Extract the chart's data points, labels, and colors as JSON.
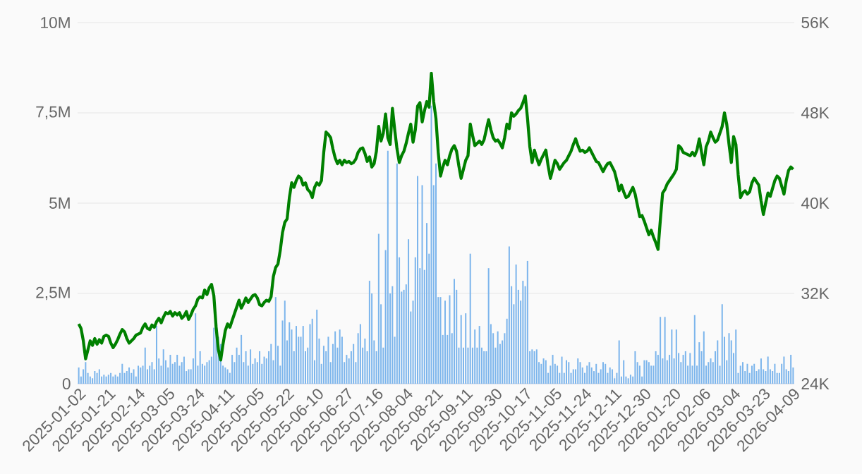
{
  "chart_data": {
    "type": "bar",
    "categories": [
      "2025-01-02",
      null,
      null,
      null,
      null,
      null,
      null,
      null,
      null,
      null,
      null,
      null,
      null,
      "2025-01-21",
      null,
      null,
      null,
      null,
      null,
      null,
      null,
      null,
      null,
      null,
      null,
      null,
      "2025-02-14",
      null,
      null,
      null,
      null,
      null,
      null,
      null,
      null,
      null,
      null,
      null,
      null,
      "2025-03-05",
      null,
      null,
      null,
      null,
      null,
      null,
      null,
      null,
      null,
      null,
      null,
      null,
      "2025-03-24",
      null,
      null,
      null,
      null,
      null,
      null,
      null,
      null,
      null,
      null,
      null,
      null,
      "2025-04-11",
      null,
      null,
      null,
      null,
      null,
      null,
      null,
      null,
      null,
      null,
      null,
      null,
      "2025-05-05",
      null,
      null,
      null,
      null,
      null,
      null,
      null,
      null,
      null,
      null,
      null,
      null,
      "2025-05-22",
      null,
      null,
      null,
      null,
      null,
      null,
      null,
      null,
      null,
      null,
      null,
      null,
      "2025-06-10",
      null,
      null,
      null,
      null,
      null,
      null,
      null,
      null,
      null,
      null,
      null,
      null,
      "2025-06-27",
      null,
      null,
      null,
      null,
      null,
      null,
      null,
      null,
      null,
      null,
      null,
      null,
      "2025-07-16",
      null,
      null,
      null,
      null,
      null,
      null,
      null,
      null,
      null,
      null,
      null,
      null,
      "2025-08-04",
      null,
      null,
      null,
      null,
      null,
      null,
      null,
      null,
      null,
      null,
      null,
      null,
      "2025-08-21",
      null,
      null,
      null,
      null,
      null,
      null,
      null,
      null,
      null,
      null,
      null,
      null,
      "2025-09-11",
      null,
      null,
      null,
      null,
      null,
      null,
      null,
      null,
      null,
      null,
      null,
      null,
      "2025-09-30",
      null,
      null,
      null,
      null,
      null,
      null,
      null,
      null,
      null,
      null,
      null,
      null,
      "2025-10-17",
      null,
      null,
      null,
      null,
      null,
      null,
      null,
      null,
      null,
      null,
      null,
      null,
      "2025-11-05",
      null,
      null,
      null,
      null,
      null,
      null,
      null,
      null,
      null,
      null,
      null,
      null,
      "2025-11-24",
      null,
      null,
      null,
      null,
      null,
      null,
      null,
      null,
      null,
      null,
      null,
      null,
      "2025-12-11",
      null,
      null,
      null,
      null,
      null,
      null,
      null,
      null,
      null,
      null,
      null,
      null,
      "2025-12-30",
      null,
      null,
      null,
      null,
      null,
      null,
      null,
      null,
      null,
      null,
      null,
      null,
      "2026-01-20",
      null,
      null,
      null,
      null,
      null,
      null,
      null,
      null,
      null,
      null,
      null,
      null,
      "2026-02-06",
      null,
      null,
      null,
      null,
      null,
      null,
      null,
      null,
      null,
      null,
      null,
      null,
      "2026-03-04",
      null,
      null,
      null,
      null,
      null,
      null,
      null,
      null,
      null,
      null,
      null,
      null,
      "2026-03-23",
      null,
      null,
      null,
      null,
      null,
      null,
      null,
      null,
      null,
      null,
      null,
      null,
      "2026-04-09"
    ],
    "series": [
      {
        "color": "#7cb5ec",
        "axis": "y",
        "values": [
          0.45,
          0.2,
          0.4,
          0.6,
          0.3,
          0.2,
          0.15,
          0.35,
          0.3,
          0.4,
          0.2,
          0.25,
          0.2,
          0.25,
          0.3,
          0.2,
          0.25,
          0.2,
          0.3,
          0.55,
          0.3,
          0.35,
          0.45,
          0.3,
          0.4,
          0.2,
          0.5,
          0.45,
          0.5,
          1.0,
          0.4,
          0.5,
          0.6,
          0.4,
          1.6,
          0.7,
          0.5,
          0.95,
          0.65,
          0.45,
          0.8,
          0.55,
          0.6,
          0.8,
          0.5,
          0.6,
          0.75,
          0.35,
          0.4,
          0.4,
          0.7,
          1.95,
          0.5,
          0.9,
          0.55,
          0.5,
          0.6,
          0.65,
          0.75,
          1.55,
          1.45,
          1.3,
          1.1,
          0.5,
          0.45,
          0.4,
          0.3,
          0.8,
          0.6,
          1.0,
          0.8,
          1.35,
          0.6,
          0.9,
          0.5,
          0.95,
          0.55,
          0.7,
          0.6,
          0.9,
          0.55,
          0.75,
          0.7,
          0.9,
          1.1,
          0.65,
          2.4,
          1.05,
          0.5,
          1.75,
          2.3,
          1.2,
          1.7,
          1.5,
          0.9,
          1.6,
          1.3,
          1.3,
          1.6,
          0.9,
          1.0,
          1.65,
          1.8,
          0.65,
          2.05,
          1.25,
          0.55,
          1.05,
          0.9,
          1.3,
          0.6,
          1.1,
          1.45,
          1.0,
          1.5,
          1.3,
          0.6,
          0.8,
          0.7,
          0.9,
          1.1,
          0.6,
          1.4,
          1.65,
          1.0,
          1.25,
          0.9,
          2.85,
          2.5,
          1.2,
          0.9,
          4.15,
          2.2,
          1.0,
          3.7,
          6.45,
          2.5,
          2.7,
          1.3,
          6.1,
          3.5,
          2.55,
          2.6,
          2.75,
          4.0,
          2.0,
          2.3,
          3.5,
          5.75,
          3.2,
          5.5,
          3.15,
          4.45,
          3.6,
          7.7,
          5.5,
          6.1,
          2.4,
          2.4,
          1.35,
          2.3,
          1.35,
          2.45,
          1.4,
          2.9,
          2.6,
          1.0,
          1.9,
          1.0,
          1.95,
          1.0,
          3.6,
          1.0,
          1.5,
          1.0,
          1.6,
          1.0,
          0.9,
          0.9,
          3.2,
          1.65,
          1.4,
          1.0,
          1.45,
          1.1,
          1.2,
          1.4,
          1.8,
          3.8,
          2.7,
          2.2,
          3.3,
          2.6,
          2.3,
          2.85,
          2.7,
          3.4,
          0.9,
          0.95,
          0.9,
          0.95,
          0.6,
          0.55,
          0.7,
          0.65,
          0.3,
          0.5,
          0.8,
          0.55,
          0.5,
          0.3,
          0.75,
          0.3,
          0.65,
          0.6,
          0.3,
          0.4,
          0.4,
          0.7,
          0.6,
          0.45,
          0.3,
          0.5,
          0.6,
          0.45,
          0.35,
          0.55,
          0.3,
          0.4,
          0.6,
          0.55,
          0.3,
          0.45,
          0.4,
          0.15,
          0.3,
          1.2,
          0.2,
          0.65,
          0.2,
          0.15,
          0.25,
          0.2,
          0.9,
          0.6,
          0.5,
          0.2,
          0.65,
          0.65,
          0.6,
          0.5,
          0.5,
          0.9,
          0.8,
          1.85,
          0.7,
          1.85,
          0.65,
          0.8,
          1.5,
          0.7,
          1.5,
          0.85,
          0.6,
          0.8,
          0.9,
          0.5,
          0.85,
          0.5,
          1.9,
          0.5,
          1.15,
          0.9,
          1.45,
          0.5,
          0.6,
          0.7,
          0.6,
          0.9,
          1.2,
          0.5,
          2.2,
          1.3,
          0.65,
          1.4,
          1.2,
          0.85,
          1.5,
          0.3,
          0.5,
          0.6,
          0.35,
          0.55,
          0.3,
          0.5,
          0.55,
          0.35,
          0.4,
          0.7,
          0.4,
          0.35,
          0.75,
          0.4,
          0.35,
          0.55,
          0.3,
          0.3,
          0.55,
          0.75,
          0.4,
          0.35,
          0.8,
          0.45
        ]
      },
      {
        "type": "line",
        "color": "#008000",
        "axis": "y2",
        "values": [
          29.3,
          28.9,
          27.8,
          26.2,
          27.0,
          27.8,
          27.4,
          28.0,
          27.5,
          27.9,
          27.6,
          28.2,
          28.3,
          28.2,
          27.6,
          27.2,
          27.5,
          27.9,
          28.4,
          28.8,
          28.6,
          28.0,
          27.6,
          27.8,
          28.0,
          28.3,
          28.4,
          28.5,
          29.0,
          29.3,
          28.9,
          28.8,
          29.2,
          29.0,
          29.5,
          29.8,
          29.4,
          29.9,
          30.3,
          30.2,
          30.4,
          30.0,
          30.3,
          30.1,
          30.3,
          29.8,
          30.0,
          30.4,
          29.7,
          30.1,
          30.6,
          30.9,
          31.5,
          31.7,
          31.6,
          32.3,
          31.9,
          32.5,
          32.8,
          31.8,
          29.0,
          27.0,
          26.1,
          27.5,
          28.7,
          29.3,
          29.0,
          29.6,
          30.2,
          30.8,
          31.4,
          30.7,
          31.1,
          31.6,
          31.2,
          31.5,
          31.8,
          31.9,
          31.6,
          31.0,
          30.9,
          31.2,
          31.4,
          31.3,
          31.7,
          33.5,
          34.3,
          34.6,
          35.8,
          37.4,
          38.3,
          38.6,
          40.5,
          41.8,
          41.4,
          42.0,
          42.4,
          42.2,
          41.6,
          41.8,
          41.2,
          41.0,
          40.5,
          41.4,
          41.8,
          41.6,
          42.0,
          44.5,
          46.3,
          46.1,
          45.8,
          44.8,
          44.0,
          43.5,
          43.8,
          43.4,
          43.8,
          43.6,
          43.7,
          43.5,
          43.6,
          43.9,
          44.5,
          44.8,
          44.9,
          44.4,
          43.7,
          44.1,
          43.2,
          43.5,
          44.6,
          46.8,
          45.5,
          46.2,
          47.9,
          45.8,
          45.2,
          48.4,
          46.5,
          44.8,
          43.6,
          44.2,
          44.6,
          45.3,
          46.2,
          47.0,
          45.4,
          46.5,
          48.6,
          48.9,
          47.2,
          48.2,
          49.0,
          48.5,
          51.5,
          49.0,
          47.5,
          44.5,
          42.4,
          43.2,
          43.8,
          43.4,
          44.2,
          44.8,
          45.1,
          44.6,
          43.3,
          42.2,
          43.0,
          43.8,
          44.2,
          47.0,
          46.0,
          45.1,
          45.3,
          45.5,
          45.2,
          45.6,
          46.5,
          47.4,
          46.5,
          45.8,
          45.5,
          45.6,
          45.3,
          44.9,
          45.8,
          47.0,
          46.6,
          48.0,
          47.7,
          47.9,
          48.2,
          48.4,
          48.9,
          49.5,
          47.5,
          45.0,
          43.6,
          44.7,
          44.0,
          43.4,
          43.9,
          44.3,
          44.7,
          43.3,
          42.2,
          43.0,
          43.8,
          43.5,
          43.0,
          43.3,
          43.6,
          43.8,
          44.2,
          44.6,
          45.2,
          45.7,
          45.1,
          44.6,
          44.7,
          44.5,
          44.6,
          44.9,
          44.5,
          44.1,
          43.7,
          43.6,
          43.2,
          42.8,
          43.2,
          43.5,
          43.6,
          43.2,
          42.8,
          42.0,
          41.1,
          41.6,
          41.0,
          40.5,
          40.6,
          41.0,
          41.4,
          40.8,
          39.8,
          38.8,
          38.9,
          38.4,
          37.8,
          37.2,
          37.6,
          37.0,
          36.5,
          35.9,
          38.5,
          40.9,
          41.2,
          41.7,
          42.0,
          42.3,
          42.6,
          43.0,
          45.1,
          44.9,
          44.5,
          44.4,
          44.3,
          44.2,
          44.5,
          44.2,
          44.7,
          45.7,
          44.5,
          43.4,
          45.0,
          45.5,
          46.3,
          45.8,
          45.4,
          45.6,
          46.2,
          46.8,
          48.0,
          47.0,
          45.2,
          43.6,
          45.9,
          45.2,
          42.5,
          40.5,
          40.9,
          41.1,
          40.8,
          41.0,
          41.8,
          42.2,
          41.9,
          41.6,
          40.2,
          39.0,
          40.0,
          40.9,
          40.6,
          41.3,
          42.0,
          42.4,
          42.2,
          41.5,
          40.8,
          42.0,
          42.9,
          43.2,
          43.0
        ]
      }
    ],
    "ylim": [
      0,
      10
    ],
    "yticks": [
      0,
      {
        "value": 2.5,
        "label": "2,5M"
      },
      {
        "value": 5,
        "label": "5M"
      },
      {
        "value": 7.5,
        "label": "7,5M"
      },
      {
        "value": 10,
        "label": "10M"
      }
    ],
    "y2lim": [
      24,
      56
    ],
    "y2ticks": [
      {
        "value": 24,
        "label": "24K"
      },
      {
        "value": 32,
        "label": "32K"
      },
      {
        "value": 40,
        "label": "40K"
      },
      {
        "value": 48,
        "label": "48K"
      },
      {
        "value": 56,
        "label": "56K"
      }
    ],
    "grid": "y",
    "marker": "none"
  }
}
